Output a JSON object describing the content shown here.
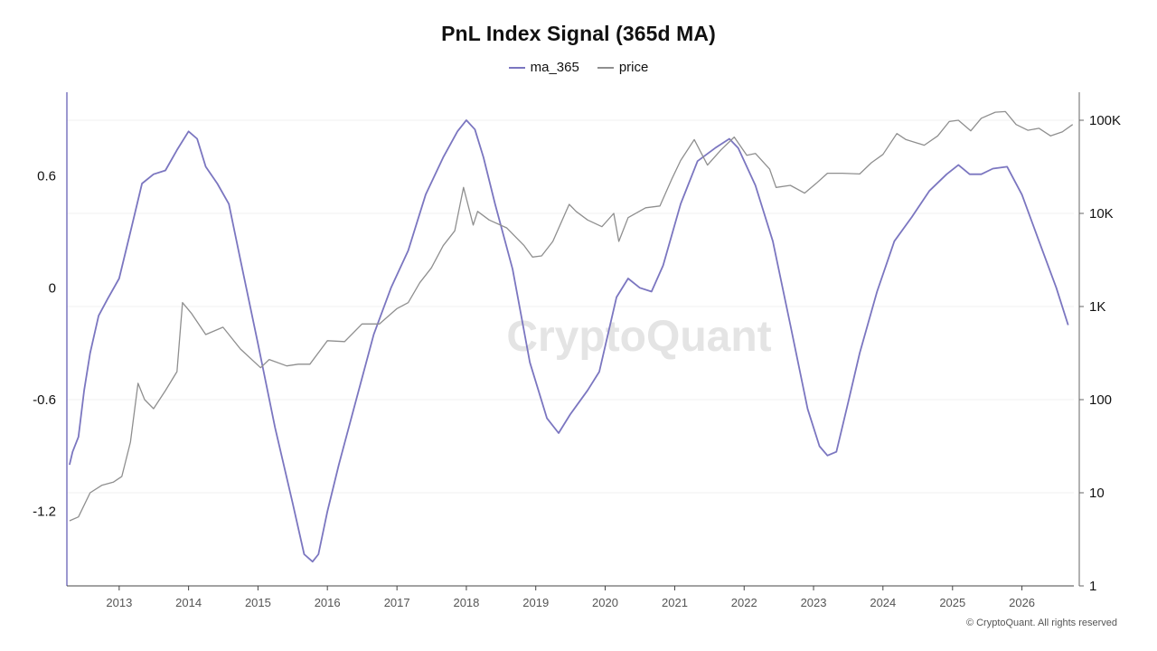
{
  "chart_data": {
    "type": "line",
    "title": "PnL Index Signal (365d MA)",
    "watermark": "CryptoQuant",
    "footer": "© CryptoQuant. All rights reserved",
    "grid": true,
    "legend_position": "top-center",
    "x_axis": {
      "type": "date",
      "range": [
        "2012-04-01",
        "2026-10-01"
      ],
      "ticks": [
        "2013",
        "2014",
        "2015",
        "2016",
        "2017",
        "2018",
        "2019",
        "2020",
        "2021",
        "2022",
        "2023",
        "2024",
        "2025",
        "2026"
      ]
    },
    "y_left": {
      "range": [
        -1.6,
        1.05
      ],
      "ticks": [
        0.6,
        0,
        -0.6,
        -1.2
      ],
      "tick_labels": [
        "0.6",
        "0",
        "-0.6",
        "-1.2"
      ]
    },
    "y_right": {
      "scale": "log",
      "range": [
        1,
        200000
      ],
      "ticks": [
        100000,
        10000,
        1000,
        100,
        10,
        1
      ],
      "tick_labels": [
        "100K",
        "10K",
        "1K",
        "100",
        "10",
        "1"
      ]
    },
    "series": [
      {
        "name": "ma_365",
        "axis": "left",
        "color": "#7b76c0",
        "x": [
          "2012-04-15",
          "2012-05-01",
          "2012-06-01",
          "2012-07-01",
          "2012-08-01",
          "2012-09-15",
          "2012-11-01",
          "2013-01-01",
          "2013-03-01",
          "2013-05-01",
          "2013-07-01",
          "2013-09-01",
          "2013-11-01",
          "2014-01-01",
          "2014-02-15",
          "2014-04-01",
          "2014-06-01",
          "2014-08-01",
          "2014-10-01",
          "2015-01-01",
          "2015-04-01",
          "2015-07-01",
          "2015-09-01",
          "2015-10-15",
          "2015-11-15",
          "2016-01-01",
          "2016-03-01",
          "2016-06-01",
          "2016-09-01",
          "2016-12-01",
          "2017-03-01",
          "2017-06-01",
          "2017-09-01",
          "2017-11-15",
          "2018-01-01",
          "2018-02-15",
          "2018-04-01",
          "2018-06-01",
          "2018-09-01",
          "2018-12-01",
          "2019-03-01",
          "2019-05-01",
          "2019-07-01",
          "2019-10-01",
          "2019-12-01",
          "2020-03-01",
          "2020-05-01",
          "2020-07-01",
          "2020-09-01",
          "2020-11-01",
          "2021-02-01",
          "2021-05-01",
          "2021-08-01",
          "2021-10-15",
          "2021-12-01",
          "2022-03-01",
          "2022-06-01",
          "2022-09-01",
          "2022-12-01",
          "2023-02-01",
          "2023-03-15",
          "2023-05-01",
          "2023-07-01",
          "2023-09-01",
          "2023-12-01",
          "2024-03-01",
          "2024-06-01",
          "2024-09-01",
          "2024-12-01",
          "2025-02-01",
          "2025-04-01",
          "2025-06-01",
          "2025-08-01",
          "2025-10-15",
          "2026-01-01",
          "2026-04-01",
          "2026-07-01",
          "2026-09-01"
        ],
        "y": [
          -0.95,
          -0.88,
          -0.8,
          -0.55,
          -0.35,
          -0.15,
          -0.06,
          0.05,
          0.3,
          0.56,
          0.61,
          0.63,
          0.74,
          0.84,
          0.8,
          0.65,
          0.56,
          0.45,
          0.15,
          -0.3,
          -0.75,
          -1.15,
          -1.43,
          -1.47,
          -1.43,
          -1.2,
          -0.95,
          -0.6,
          -0.25,
          0.0,
          0.2,
          0.5,
          0.7,
          0.84,
          0.9,
          0.85,
          0.7,
          0.45,
          0.1,
          -0.4,
          -0.7,
          -0.78,
          -0.68,
          -0.55,
          -0.45,
          -0.05,
          0.05,
          0.0,
          -0.02,
          0.12,
          0.45,
          0.68,
          0.75,
          0.8,
          0.75,
          0.55,
          0.25,
          -0.2,
          -0.65,
          -0.85,
          -0.9,
          -0.88,
          -0.62,
          -0.35,
          -0.02,
          0.25,
          0.38,
          0.52,
          0.61,
          0.66,
          0.61,
          0.61,
          0.64,
          0.65,
          0.5,
          0.25,
          0.0,
          -0.2
        ]
      },
      {
        "name": "price",
        "axis": "right",
        "color": "#8f8f8f",
        "x": [
          "2012-04-15",
          "2012-06-01",
          "2012-08-01",
          "2012-10-01",
          "2012-12-01",
          "2013-01-15",
          "2013-03-01",
          "2013-04-10",
          "2013-05-15",
          "2013-07-01",
          "2013-09-01",
          "2013-11-01",
          "2013-11-30",
          "2014-01-15",
          "2014-04-01",
          "2014-07-01",
          "2014-10-01",
          "2015-01-15",
          "2015-03-01",
          "2015-06-01",
          "2015-08-01",
          "2015-10-01",
          "2016-01-01",
          "2016-04-01",
          "2016-07-01",
          "2016-10-01",
          "2017-01-01",
          "2017-03-01",
          "2017-05-01",
          "2017-07-01",
          "2017-09-01",
          "2017-11-01",
          "2017-12-17",
          "2018-02-06",
          "2018-03-01",
          "2018-05-01",
          "2018-08-01",
          "2018-11-01",
          "2018-12-15",
          "2019-02-01",
          "2019-04-01",
          "2019-06-26",
          "2019-08-01",
          "2019-10-01",
          "2019-12-15",
          "2020-02-15",
          "2020-03-13",
          "2020-05-01",
          "2020-08-01",
          "2020-10-15",
          "2020-12-15",
          "2021-02-01",
          "2021-04-14",
          "2021-06-22",
          "2021-09-01",
          "2021-11-10",
          "2022-01-15",
          "2022-03-01",
          "2022-05-15",
          "2022-06-18",
          "2022-09-01",
          "2022-11-15",
          "2023-01-15",
          "2023-03-15",
          "2023-06-01",
          "2023-09-01",
          "2023-11-01",
          "2024-01-01",
          "2024-03-14",
          "2024-05-01",
          "2024-08-05",
          "2024-10-15",
          "2024-12-15",
          "2025-02-01",
          "2025-04-07",
          "2025-06-01",
          "2025-08-14",
          "2025-10-06",
          "2025-12-01",
          "2026-02-01",
          "2026-04-01",
          "2026-06-01",
          "2026-08-01",
          "2026-09-25"
        ],
        "y": [
          5,
          5.5,
          10,
          12,
          13,
          15,
          35,
          150,
          100,
          80,
          125,
          200,
          1100,
          850,
          500,
          600,
          350,
          220,
          270,
          230,
          240,
          240,
          430,
          420,
          650,
          650,
          950,
          1100,
          1800,
          2600,
          4500,
          6500,
          19000,
          7500,
          10500,
          8500,
          7000,
          4500,
          3400,
          3500,
          5000,
          12500,
          10500,
          8500,
          7200,
          10000,
          5000,
          9000,
          11500,
          12000,
          23000,
          37000,
          62000,
          33000,
          48000,
          66000,
          42000,
          44000,
          30000,
          19000,
          20000,
          16500,
          21000,
          27000,
          27000,
          26500,
          35000,
          43000,
          72000,
          62000,
          54000,
          68000,
          97000,
          100000,
          77000,
          105000,
          122000,
          124000,
          90000,
          78000,
          82000,
          68000,
          75000,
          90000
        ]
      }
    ]
  }
}
